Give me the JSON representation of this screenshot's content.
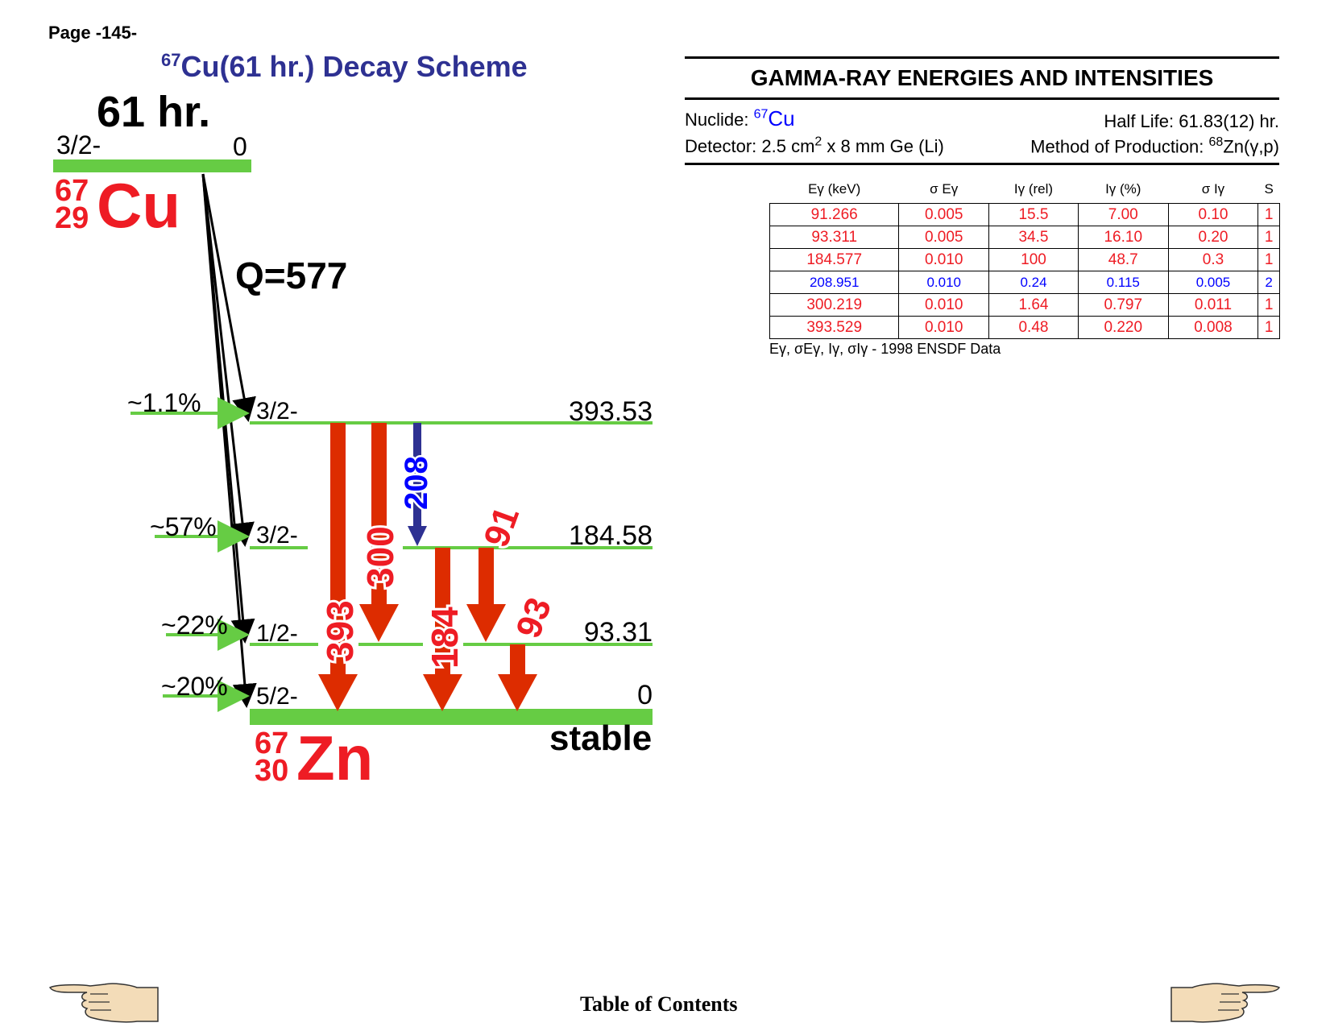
{
  "page": {
    "number": "Page -145-",
    "toc_label": "Table of Contents"
  },
  "title": {
    "mass": "67",
    "text": "Cu(61 hr.) Decay Scheme"
  },
  "parent": {
    "half_life": "61 hr.",
    "spin": "3/2-",
    "energy": "0",
    "mass": "67",
    "z": "29",
    "symbol": "Cu",
    "q_value": "Q=577"
  },
  "daughter": {
    "mass": "67",
    "z": "30",
    "symbol": "Zn",
    "status": "stable"
  },
  "levels": [
    {
      "spin": "3/2-",
      "energy": "393.53",
      "feeding": "~1.1%"
    },
    {
      "spin": "3/2-",
      "energy": "184.58",
      "feeding": "~57%"
    },
    {
      "spin": "1/2-",
      "energy": "93.31",
      "feeding": "~22%"
    },
    {
      "spin": "5/2-",
      "energy": "0",
      "feeding": "~20%"
    }
  ],
  "transitions": [
    {
      "label": "393",
      "color": "#dd2c00"
    },
    {
      "label": "300",
      "color": "#dd2c00"
    },
    {
      "label": "208",
      "color": "#2e3192"
    },
    {
      "label": "184",
      "color": "#dd2c00"
    },
    {
      "label": "91",
      "color": "#dd2c00"
    },
    {
      "label": "93",
      "color": "#dd2c00"
    }
  ],
  "colors": {
    "level_line": "#66cc44",
    "gamma_red": "#dd2c00",
    "gamma_blue": "#2e3192",
    "label_red": "#ee1c24",
    "label_blue": "#0000ff"
  },
  "table": {
    "title": "GAMMA-RAY ENERGIES AND INTENSITIES",
    "nuclide_label": "Nuclide:",
    "nuclide_mass": "67",
    "nuclide_symbol": "Cu",
    "half_life": "Half Life: 61.83(12) hr.",
    "detector_prefix": "Detector: 2.5 cm",
    "detector_exp": "2",
    "detector_suffix": " x 8 mm Ge (Li)",
    "method_prefix": "Method of Production: ",
    "method_mass": "68",
    "method_suffix": "Zn(γ,p)",
    "headers": [
      "Eγ (keV)",
      "σ Eγ",
      "Iγ (rel)",
      "Iγ (%)",
      "σ Iγ",
      "S"
    ],
    "rows": [
      [
        "91.266",
        "0.005",
        "15.5",
        "7.00",
        "0.10",
        "1"
      ],
      [
        "93.311",
        "0.005",
        "34.5",
        "16.10",
        "0.20",
        "1"
      ],
      [
        "184.577",
        "0.010",
        "100",
        "48.7",
        "0.3",
        "1"
      ],
      [
        "208.951",
        "0.010",
        "0.24",
        "0.115",
        "0.005",
        "2"
      ],
      [
        "300.219",
        "0.010",
        "1.64",
        "0.797",
        "0.011",
        "1"
      ],
      [
        "393.529",
        "0.010",
        "0.48",
        "0.220",
        "0.008",
        "1"
      ]
    ],
    "source": "Eγ, σEγ, Iγ, σIγ - 1998 ENSDF Data"
  }
}
